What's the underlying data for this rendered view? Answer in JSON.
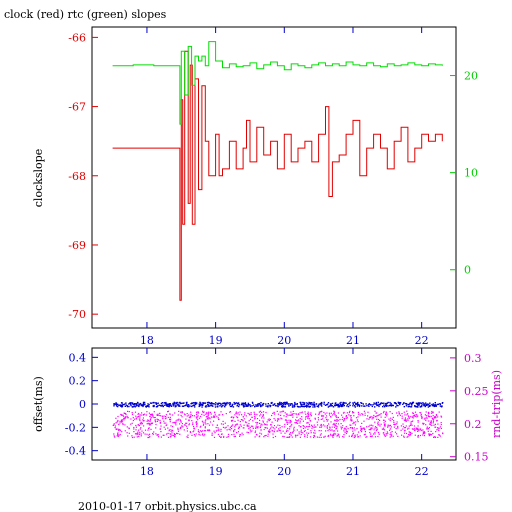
{
  "chart_data": [
    {
      "type": "line",
      "title": "clock (red) rtc (green) slopes",
      "ylabel_left": "clockslope",
      "xlim": [
        17.2,
        22.5
      ],
      "ylim_left": [
        -70.2,
        -65.85
      ],
      "ylim_right": [
        -6.0,
        25.0
      ],
      "x_ticks": [
        18,
        19,
        20,
        21,
        22
      ],
      "y_ticks_left": [
        -66,
        -67,
        -68,
        -69,
        -70
      ],
      "y_ticks_right": [
        0,
        10,
        20
      ],
      "colors": {
        "clock": "#e00000",
        "rtc": "#00dd00",
        "left_axis": "#e00000",
        "right_axis": "#00cc00",
        "x_axis": "#0000cc"
      },
      "series": [
        {
          "axis": "left",
          "x": [
            17.5,
            17.8,
            18.1,
            18.45,
            18.48,
            18.5,
            18.52,
            18.55,
            18.6,
            18.63,
            18.66,
            18.7,
            18.75,
            18.8,
            18.85,
            18.9,
            19.0,
            19.05,
            19.1,
            19.2,
            19.3,
            19.4,
            19.45,
            19.5,
            19.6,
            19.7,
            19.8,
            19.9,
            20.0,
            20.1,
            20.2,
            20.3,
            20.4,
            20.5,
            20.6,
            20.65,
            20.7,
            20.8,
            20.9,
            21.0,
            21.1,
            21.2,
            21.3,
            21.4,
            21.5,
            21.6,
            21.7,
            21.8,
            21.9,
            22.0,
            22.1,
            22.2,
            22.3
          ],
          "y": [
            -67.6,
            -67.6,
            -67.6,
            -67.6,
            -69.8,
            -66.9,
            -68.7,
            -66.2,
            -68.4,
            -66.4,
            -68.7,
            -66.6,
            -68.2,
            -66.7,
            -67.5,
            -68.0,
            -67.4,
            -68.0,
            -67.9,
            -67.5,
            -67.9,
            -67.6,
            -67.2,
            -67.8,
            -67.3,
            -67.7,
            -67.5,
            -67.9,
            -67.4,
            -67.8,
            -67.6,
            -67.5,
            -67.8,
            -67.4,
            -67.0,
            -68.3,
            -67.8,
            -67.7,
            -67.4,
            -67.2,
            -68.0,
            -67.6,
            -67.4,
            -67.6,
            -67.9,
            -67.5,
            -67.3,
            -67.8,
            -67.6,
            -67.4,
            -67.5,
            -67.4,
            -67.5
          ]
        },
        {
          "axis": "right",
          "x": [
            17.5,
            17.8,
            18.1,
            18.45,
            18.48,
            18.5,
            18.55,
            18.6,
            18.65,
            18.7,
            18.75,
            18.8,
            18.85,
            18.9,
            19.0,
            19.1,
            19.2,
            19.3,
            19.4,
            19.5,
            19.6,
            19.7,
            19.8,
            19.9,
            20.0,
            20.1,
            20.2,
            20.3,
            20.4,
            20.5,
            20.6,
            20.7,
            20.8,
            20.9,
            21.0,
            21.1,
            21.2,
            21.3,
            21.4,
            21.5,
            21.6,
            21.7,
            21.8,
            21.9,
            22.0,
            22.1,
            22.2,
            22.3
          ],
          "y": [
            21.0,
            21.1,
            21.0,
            21.0,
            15.0,
            22.5,
            18.0,
            23.0,
            19.0,
            22.0,
            21.5,
            22.0,
            21.0,
            23.5,
            21.5,
            20.8,
            21.2,
            20.9,
            21.0,
            21.3,
            20.7,
            21.1,
            21.4,
            21.0,
            20.6,
            21.2,
            21.0,
            20.8,
            21.1,
            21.3,
            21.0,
            21.2,
            21.0,
            21.4,
            21.1,
            21.0,
            21.3,
            21.0,
            20.9,
            21.2,
            21.0,
            21.1,
            21.3,
            21.1,
            21.0,
            21.2,
            21.1,
            21.0
          ]
        }
      ]
    },
    {
      "type": "scatter",
      "ylabel_left": "offset(ms)",
      "ylabel_right": "rnd-trip(ms)",
      "xlim": [
        17.2,
        22.5
      ],
      "ylim_left": [
        -0.48,
        0.48
      ],
      "ylim_right": [
        0.145,
        0.315
      ],
      "x_ticks": [
        18,
        19,
        20,
        21,
        22
      ],
      "y_ticks_left": [
        "0.4",
        "0.2",
        "0",
        "-0.2",
        "-0.4"
      ],
      "y_ticks_right": [
        "0.3",
        "0.25",
        "0.2",
        "0.15"
      ],
      "colors": {
        "offset": "#0000cc",
        "rnd_trip": "#ff00ff",
        "left_axis": "#0000cc",
        "right_axis": "#cc00cc"
      },
      "series": [
        {
          "axis": "left",
          "x_range": [
            17.5,
            22.3
          ],
          "y_mean": 0.0,
          "y_spread": 0.02
        },
        {
          "axis": "right",
          "x_range": [
            17.5,
            22.3
          ],
          "y_mean": 0.2,
          "y_spread": 0.02
        }
      ]
    }
  ],
  "footer": "2010-01-17  orbit.physics.ubc.ca"
}
